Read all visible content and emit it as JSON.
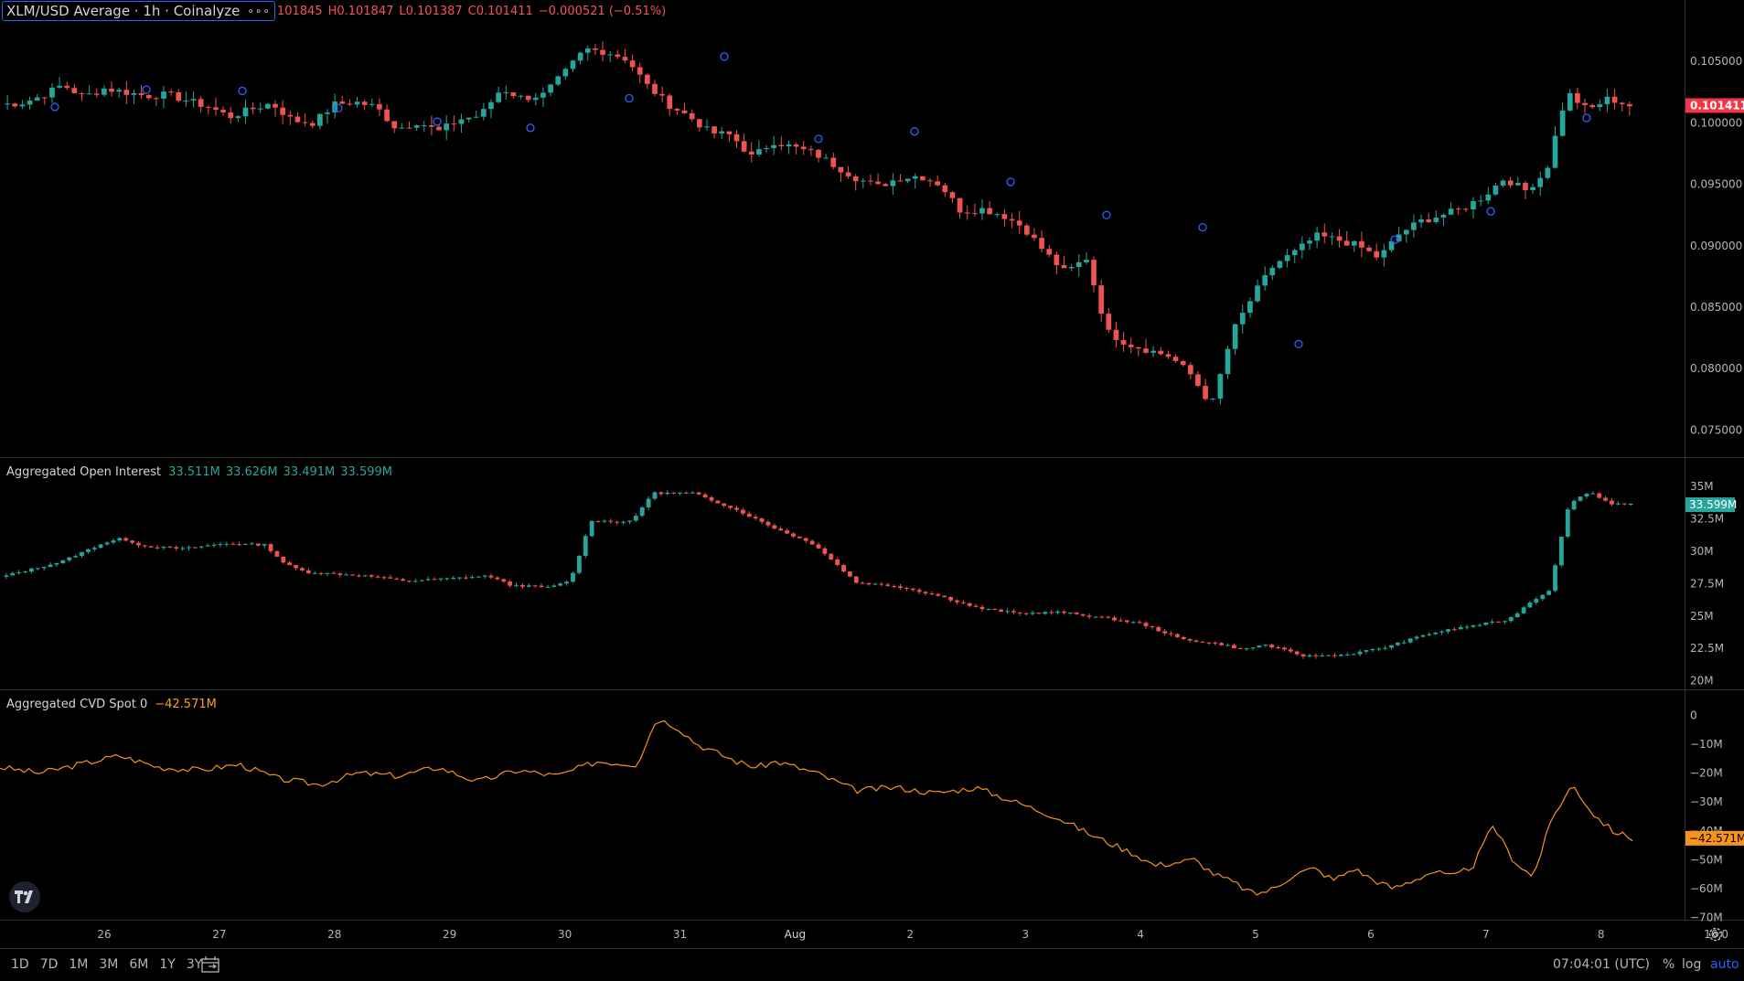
{
  "legend": {
    "symbol": "XLM/USD Average · 1h · Coinalyze",
    "menu_dots": "∘∘∘",
    "ohlc_open": "101845",
    "ohlc_high": "H0.101847",
    "ohlc_low": "L0.101387",
    "ohlc_close": "C0.101411",
    "ohlc_change": "−0.000521 (−0.51%)"
  },
  "oi_legend": {
    "title": "Aggregated Open Interest",
    "o": "33.511M",
    "h": "33.626M",
    "l": "33.491M",
    "c": "33.599M"
  },
  "cvd_legend": {
    "title": "Aggregated CVD Spot 0",
    "value": "−42.571M"
  },
  "bottom": {
    "ranges": [
      "1D",
      "7D",
      "1M",
      "3M",
      "6M",
      "1Y",
      "3Y"
    ],
    "time": "07:04:01 (UTC)",
    "percent": "%",
    "log": "log",
    "auto": "auto"
  },
  "colors": {
    "up": "#26a69a",
    "down": "#ef5350",
    "cvd": "#f7931a",
    "price_tag": "#f23645",
    "oi_tag": "#26a69a"
  },
  "chart_data": [
    {
      "type": "candlestick",
      "title": "XLM/USD Average · 1h · Coinalyze",
      "x_labels": [
        "26",
        "27",
        "28",
        "29",
        "30",
        "31",
        "Aug",
        "2",
        "3",
        "4",
        "5",
        "6",
        "7",
        "8",
        "16:0"
      ],
      "y_ticks": [
        "0.105000",
        "0.100000",
        "0.095000",
        "0.090000",
        "0.085000",
        "0.080000",
        "0.075000"
      ],
      "ylim": [
        0.0728,
        0.11
      ],
      "last_price_label": "0.101411",
      "last_price": 0.101411,
      "anchors": [
        [
          0,
          0.1015
        ],
        [
          1,
          0.1016
        ],
        [
          2,
          0.1022
        ],
        [
          3,
          0.1031
        ],
        [
          4,
          0.1021
        ],
        [
          5,
          0.1028
        ],
        [
          6,
          0.1025
        ],
        [
          7,
          0.1022
        ],
        [
          8,
          0.1023
        ],
        [
          9,
          0.1018
        ],
        [
          10,
          0.1013
        ],
        [
          11,
          0.1005
        ],
        [
          12,
          0.1011
        ],
        [
          13,
          0.1016
        ],
        [
          14,
          0.1002
        ],
        [
          15,
          0.1
        ],
        [
          16,
          0.1015
        ],
        [
          17,
          0.1017
        ],
        [
          18,
          0.1013
        ],
        [
          19,
          0.0995
        ],
        [
          20,
          0.1001
        ],
        [
          21,
          0.0993
        ],
        [
          22,
          0.1003
        ],
        [
          23,
          0.1006
        ],
        [
          24,
          0.1028
        ],
        [
          25,
          0.102
        ],
        [
          26,
          0.1023
        ],
        [
          27,
          0.104
        ],
        [
          28,
          0.106
        ],
        [
          29,
          0.1058
        ],
        [
          30,
          0.1052
        ],
        [
          31,
          0.103
        ],
        [
          32,
          0.1015
        ],
        [
          33,
          0.1005
        ],
        [
          34,
          0.0992
        ],
        [
          35,
          0.099
        ],
        [
          36,
          0.0972
        ],
        [
          37,
          0.0985
        ],
        [
          38,
          0.098
        ],
        [
          39,
          0.0975
        ],
        [
          40,
          0.0965
        ],
        [
          41,
          0.0955
        ],
        [
          42,
          0.0948
        ],
        [
          43,
          0.0955
        ],
        [
          44,
          0.0957
        ],
        [
          45,
          0.095
        ],
        [
          46,
          0.0928
        ],
        [
          47,
          0.093
        ],
        [
          48,
          0.0925
        ],
        [
          49,
          0.0915
        ],
        [
          50,
          0.0895
        ],
        [
          51,
          0.0878
        ],
        [
          52,
          0.089
        ],
        [
          53,
          0.083
        ],
        [
          54,
          0.082
        ],
        [
          55,
          0.0815
        ],
        [
          56,
          0.081
        ],
        [
          57,
          0.0795
        ],
        [
          58,
          0.077
        ],
        [
          59,
          0.083
        ],
        [
          60,
          0.086
        ],
        [
          61,
          0.0885
        ],
        [
          62,
          0.0895
        ],
        [
          63,
          0.0908
        ],
        [
          64,
          0.0905
        ],
        [
          65,
          0.09
        ],
        [
          66,
          0.089
        ],
        [
          67,
          0.091
        ],
        [
          68,
          0.092
        ],
        [
          69,
          0.0925
        ],
        [
          70,
          0.093
        ],
        [
          71,
          0.094
        ],
        [
          72,
          0.0955
        ],
        [
          73,
          0.0945
        ],
        [
          74,
          0.096
        ],
        [
          75,
          0.1025
        ],
        [
          76,
          0.101
        ],
        [
          77,
          0.102
        ],
        [
          78,
          0.1014
        ]
      ]
    },
    {
      "type": "candlestick",
      "title": "Aggregated Open Interest",
      "y_ticks": [
        "35M",
        "32.5M",
        "30M",
        "27.5M",
        "25M",
        "22.5M",
        "20M"
      ],
      "ylim": [
        19.9,
        35.3
      ],
      "last_value_label": "33.599M",
      "last_value": 33.599,
      "anchors": [
        [
          0,
          28.0
        ],
        [
          3,
          29.2
        ],
        [
          5,
          30.6
        ],
        [
          6,
          31.0
        ],
        [
          7,
          30.4
        ],
        [
          9,
          30.2
        ],
        [
          11,
          30.6
        ],
        [
          13,
          30.5
        ],
        [
          14,
          29.0
        ],
        [
          15,
          28.4
        ],
        [
          18,
          28.1
        ],
        [
          20,
          27.7
        ],
        [
          24,
          28.1
        ],
        [
          25,
          27.4
        ],
        [
          27,
          27.2
        ],
        [
          28,
          27.8
        ],
        [
          29,
          32.4
        ],
        [
          30,
          32.3
        ],
        [
          31,
          32.3
        ],
        [
          32,
          34.5
        ],
        [
          34,
          34.5
        ],
        [
          36,
          33.3
        ],
        [
          38,
          31.8
        ],
        [
          40,
          30.5
        ],
        [
          42,
          27.6
        ],
        [
          44,
          27.3
        ],
        [
          46,
          26.6
        ],
        [
          48,
          25.6
        ],
        [
          50,
          25.2
        ],
        [
          52,
          25.3
        ],
        [
          54,
          24.9
        ],
        [
          56,
          24.4
        ],
        [
          58,
          23.2
        ],
        [
          60,
          22.8
        ],
        [
          61,
          22.4
        ],
        [
          62,
          22.8
        ],
        [
          64,
          21.9
        ],
        [
          66,
          22.0
        ],
        [
          68,
          22.6
        ],
        [
          70,
          23.6
        ],
        [
          72,
          24.2
        ],
        [
          74,
          24.7
        ],
        [
          75,
          26.0
        ],
        [
          76,
          27.0
        ],
        [
          77,
          33.8
        ],
        [
          78,
          34.6
        ],
        [
          79,
          33.7
        ],
        [
          80,
          33.6
        ]
      ]
    },
    {
      "type": "line",
      "title": "Aggregated CVD Spot 0",
      "y_ticks": [
        "0",
        "−10M",
        "−20M",
        "−30M",
        "−40M",
        "−50M",
        "−60M",
        "−70M"
      ],
      "ylim": [
        -69.5,
        2
      ],
      "last_value_label": "−42.571M",
      "last_value": -42.571,
      "points": [
        [
          0,
          -18
        ],
        [
          2,
          -20
        ],
        [
          4,
          -17
        ],
        [
          6,
          -14
        ],
        [
          8,
          -18
        ],
        [
          10,
          -19
        ],
        [
          12,
          -17
        ],
        [
          14,
          -22
        ],
        [
          16,
          -24
        ],
        [
          18,
          -20
        ],
        [
          20,
          -21
        ],
        [
          22,
          -18
        ],
        [
          24,
          -23
        ],
        [
          26,
          -19
        ],
        [
          28,
          -21
        ],
        [
          30,
          -16
        ],
        [
          32,
          -17
        ],
        [
          33,
          -1
        ],
        [
          34,
          -4
        ],
        [
          35,
          -10
        ],
        [
          37,
          -16
        ],
        [
          38,
          -18
        ],
        [
          39,
          -16
        ],
        [
          41,
          -20
        ],
        [
          43,
          -26
        ],
        [
          45,
          -25
        ],
        [
          47,
          -27
        ],
        [
          49,
          -25
        ],
        [
          51,
          -30
        ],
        [
          53,
          -35
        ],
        [
          55,
          -42
        ],
        [
          57,
          -48
        ],
        [
          58,
          -52
        ],
        [
          60,
          -50
        ],
        [
          61,
          -55
        ],
        [
          62,
          -58
        ],
        [
          63,
          -62
        ],
        [
          64,
          -60
        ],
        [
          65,
          -55
        ],
        [
          66,
          -53
        ],
        [
          67,
          -57
        ],
        [
          68,
          -53
        ],
        [
          69,
          -57
        ],
        [
          70,
          -60
        ],
        [
          71,
          -57
        ],
        [
          72,
          -54
        ],
        [
          73,
          -56
        ],
        [
          74,
          -52
        ],
        [
          75,
          -38
        ],
        [
          76,
          -50
        ],
        [
          77,
          -56
        ],
        [
          78,
          -35
        ],
        [
          79,
          -24
        ],
        [
          80,
          -34
        ],
        [
          81,
          -40
        ],
        [
          82,
          -42.6
        ]
      ]
    }
  ]
}
